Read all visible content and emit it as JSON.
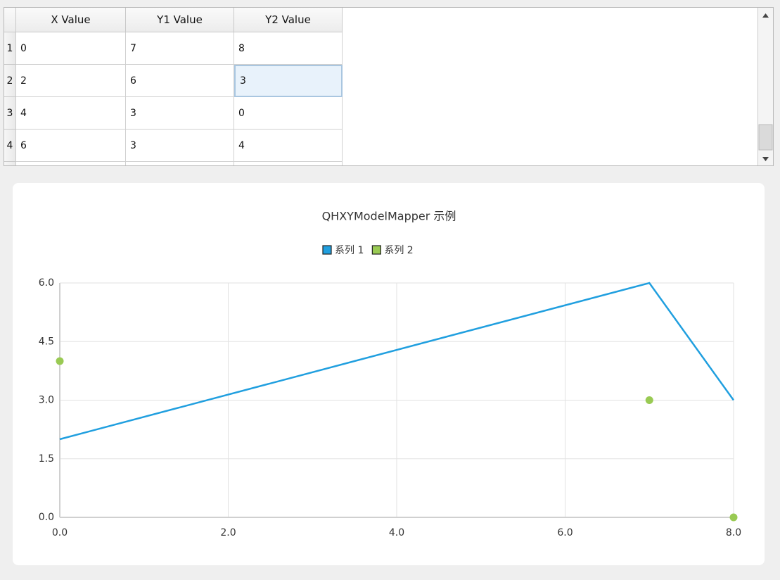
{
  "table": {
    "headers": [
      "X Value",
      "Y1 Value",
      "Y2 Value"
    ],
    "row_labels": [
      1,
      2,
      3,
      4
    ],
    "rows": [
      [
        0,
        7,
        8
      ],
      [
        2,
        6,
        3
      ],
      [
        4,
        3,
        0
      ],
      [
        6,
        3,
        4
      ]
    ]
  },
  "chart_data": {
    "type": "line",
    "title": "QHXYModelMapper 示例",
    "series": [
      {
        "name": "系列 1",
        "color": "#209fdf",
        "type": "line",
        "x": [
          0,
          7,
          8
        ],
        "values": [
          2,
          6,
          3
        ]
      },
      {
        "name": "系列 2",
        "color": "#99ca53",
        "type": "scatter",
        "x": [
          0,
          7,
          8
        ],
        "values": [
          4,
          3,
          0
        ]
      }
    ],
    "xlim": [
      0,
      8
    ],
    "ylim": [
      0,
      6
    ],
    "xticks": [
      {
        "value": 0,
        "label": "0.0"
      },
      {
        "value": 2,
        "label": "2.0"
      },
      {
        "value": 4,
        "label": "4.0"
      },
      {
        "value": 6,
        "label": "6.0"
      },
      {
        "value": 8,
        "label": "8.0"
      }
    ],
    "yticks": [
      {
        "value": 0,
        "label": "0.0"
      },
      {
        "value": 1.5,
        "label": "1.5"
      },
      {
        "value": 3,
        "label": "3.0"
      },
      {
        "value": 4.5,
        "label": "4.5"
      },
      {
        "value": 6,
        "label": "6.0"
      }
    ],
    "grid": true,
    "legend": "top"
  }
}
